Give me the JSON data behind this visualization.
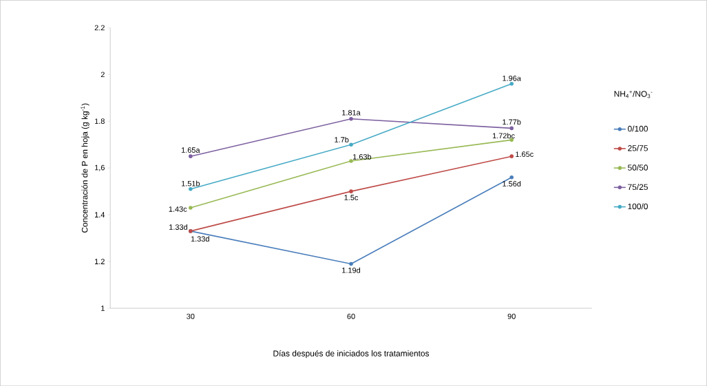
{
  "chart_data": {
    "type": "line",
    "categories": [
      "30",
      "60",
      "90"
    ],
    "xlabel": "Días después de iniciados los tratamientos",
    "ylabel": "Concentración de P en hoja (g kg$^{-1}$)",
    "legend_title": "NH$_{4}$$^{+}$/NO$_{3}$$^{-}$",
    "ylim": [
      1,
      2.2
    ],
    "yticks": [
      1,
      {
        "value": 1.2,
        "label": "1.2"
      },
      {
        "value": 1.4,
        "label": "1.4"
      },
      {
        "value": 1.6,
        "label": "1,6"
      },
      {
        "value": 1.8,
        "label": "1.8"
      },
      2,
      {
        "value": 2.2,
        "label": "2.2"
      }
    ],
    "grid": false,
    "legend": "right",
    "marker": "circle",
    "line_style": "solid",
    "series": [
      {
        "name": "0/100",
        "color": "#4a7ebb",
        "values": [
          1.33,
          1.19,
          1.56
        ],
        "value_labels": [
          "1.33d",
          "1.19d",
          "1.56d"
        ]
      },
      {
        "name": "25/75",
        "color": "#be4b48",
        "values": [
          1.33,
          1.5,
          1.65
        ],
        "value_labels": [
          "1.33d",
          "1.5c",
          "1.65c"
        ]
      },
      {
        "name": "50/50",
        "color": "#98b954",
        "values": [
          1.43,
          1.63,
          1.72
        ],
        "value_labels": [
          "1.43c",
          "1.63b",
          "1.72bc"
        ]
      },
      {
        "name": "75/25",
        "color": "#7d60a0",
        "values": [
          1.65,
          1.81,
          1.77
        ],
        "value_labels": [
          "1.65a",
          "1.81a",
          "1.77b"
        ]
      },
      {
        "name": "100/0",
        "color": "#46aac5",
        "values": [
          1.51,
          1.7,
          1.96
        ],
        "value_labels": [
          "1.51b",
          "1.7b",
          "1.96a"
        ]
      }
    ]
  }
}
